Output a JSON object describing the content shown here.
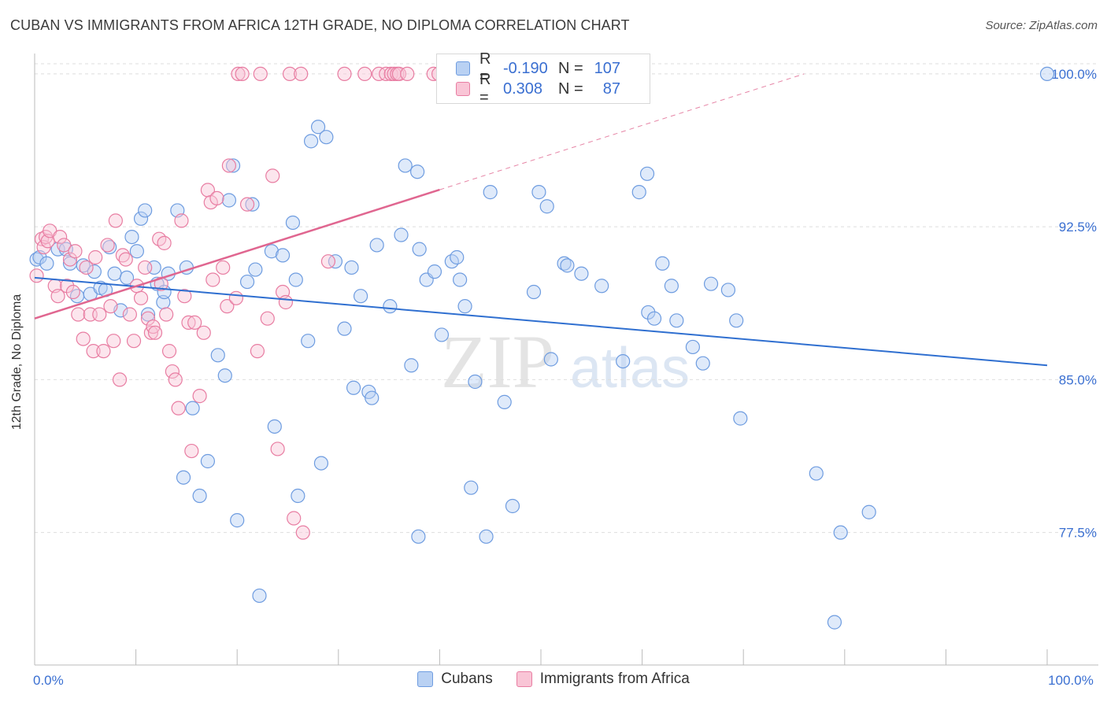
{
  "title": "CUBAN VS IMMIGRANTS FROM AFRICA 12TH GRADE, NO DIPLOMA CORRELATION CHART",
  "source": "Source: ZipAtlas.com",
  "watermark": {
    "zip": "ZIP",
    "atlas": "atlas"
  },
  "legend": {
    "r_label": "R =",
    "n_label": "N =",
    "rows": [
      {
        "r": "-0.190",
        "n": "107",
        "fill": "#b9d1f3",
        "stroke": "#6e9ce0"
      },
      {
        "r": "0.308",
        "n": "87",
        "fill": "#f9c5d6",
        "stroke": "#e87da2"
      }
    ]
  },
  "bottom_legend": [
    "Cubans",
    "Immigrants from Africa"
  ],
  "chart_data": {
    "type": "scatter",
    "xlabel": "",
    "ylabel": "12th Grade, No Diploma",
    "xlim": [
      0,
      100
    ],
    "ylim": [
      71,
      101
    ],
    "x_tick_labels": [
      {
        "value": 0,
        "label": "0.0%"
      },
      {
        "value": 100,
        "label": "100.0%"
      }
    ],
    "x_minor_ticks": [
      0,
      10,
      20,
      30,
      40,
      50,
      60,
      70,
      80,
      90,
      100
    ],
    "y_ticks": [
      {
        "value": 77.5,
        "label": "77.5%"
      },
      {
        "value": 85.0,
        "label": "85.0%"
      },
      {
        "value": 92.5,
        "label": "92.5%"
      },
      {
        "value": 100.0,
        "label": "100.0%"
      }
    ],
    "grid": true,
    "series": [
      {
        "name": "Cubans",
        "color": "#6e9ce0",
        "fill": "#b9d1f3",
        "trend": {
          "x0": 0,
          "y0": 90.0,
          "x1": 100,
          "y1": 85.7,
          "color": "#2f6fd0",
          "dashed_from": null
        },
        "points": [
          [
            0.2,
            90.9
          ],
          [
            0.5,
            91.0
          ],
          [
            1.2,
            90.7
          ],
          [
            2.3,
            91.4
          ],
          [
            3.1,
            91.4
          ],
          [
            3.5,
            90.7
          ],
          [
            4.2,
            89.1
          ],
          [
            4.8,
            90.6
          ],
          [
            5.5,
            89.2
          ],
          [
            5.9,
            90.3
          ],
          [
            6.5,
            89.5
          ],
          [
            7.0,
            89.4
          ],
          [
            7.4,
            91.5
          ],
          [
            7.9,
            90.2
          ],
          [
            8.5,
            88.4
          ],
          [
            9.1,
            90.0
          ],
          [
            9.6,
            92.0
          ],
          [
            10.1,
            91.3
          ],
          [
            10.5,
            92.9
          ],
          [
            10.9,
            93.3
          ],
          [
            11.2,
            88.2
          ],
          [
            11.8,
            90.5
          ],
          [
            12.1,
            89.7
          ],
          [
            12.7,
            88.8
          ],
          [
            12.8,
            89.3
          ],
          [
            13.2,
            90.2
          ],
          [
            14.1,
            93.3
          ],
          [
            14.7,
            80.2
          ],
          [
            15.0,
            90.5
          ],
          [
            15.6,
            83.6
          ],
          [
            16.3,
            79.3
          ],
          [
            17.1,
            81.0
          ],
          [
            18.1,
            86.2
          ],
          [
            18.8,
            85.2
          ],
          [
            19.2,
            93.8
          ],
          [
            19.6,
            95.5
          ],
          [
            20.0,
            78.1
          ],
          [
            21.0,
            89.8
          ],
          [
            21.5,
            93.6
          ],
          [
            21.8,
            90.4
          ],
          [
            22.2,
            74.4
          ],
          [
            23.4,
            91.3
          ],
          [
            23.7,
            82.7
          ],
          [
            24.5,
            91.1
          ],
          [
            25.5,
            92.7
          ],
          [
            25.8,
            89.9
          ],
          [
            26.0,
            79.3
          ],
          [
            27.0,
            86.9
          ],
          [
            27.3,
            96.7
          ],
          [
            28.0,
            97.4
          ],
          [
            28.3,
            80.9
          ],
          [
            28.8,
            96.9
          ],
          [
            29.7,
            90.8
          ],
          [
            30.6,
            87.5
          ],
          [
            31.3,
            90.5
          ],
          [
            31.5,
            84.6
          ],
          [
            32.2,
            89.1
          ],
          [
            33.0,
            84.4
          ],
          [
            33.3,
            84.1
          ],
          [
            33.8,
            91.6
          ],
          [
            35.1,
            88.6
          ],
          [
            36.2,
            92.1
          ],
          [
            36.6,
            95.5
          ],
          [
            37.2,
            85.7
          ],
          [
            37.8,
            95.2
          ],
          [
            37.9,
            77.3
          ],
          [
            38.0,
            91.4
          ],
          [
            38.7,
            89.9
          ],
          [
            39.5,
            90.3
          ],
          [
            40.2,
            87.2
          ],
          [
            41.2,
            90.8
          ],
          [
            41.7,
            91.0
          ],
          [
            42.0,
            89.9
          ],
          [
            42.5,
            88.6
          ],
          [
            43.1,
            79.7
          ],
          [
            43.5,
            84.9
          ],
          [
            44.6,
            77.3
          ],
          [
            45.0,
            94.2
          ],
          [
            46.4,
            83.9
          ],
          [
            47.2,
            78.8
          ],
          [
            49.3,
            89.3
          ],
          [
            49.8,
            94.2
          ],
          [
            50.6,
            93.5
          ],
          [
            51.0,
            86.0
          ],
          [
            52.3,
            90.7
          ],
          [
            52.6,
            90.6
          ],
          [
            54.0,
            90.2
          ],
          [
            56.0,
            89.6
          ],
          [
            58.1,
            85.9
          ],
          [
            59.7,
            94.2
          ],
          [
            60.5,
            95.1
          ],
          [
            60.6,
            88.3
          ],
          [
            61.2,
            88.0
          ],
          [
            62.0,
            90.7
          ],
          [
            62.9,
            89.6
          ],
          [
            63.4,
            87.9
          ],
          [
            65.0,
            86.6
          ],
          [
            66.0,
            85.8
          ],
          [
            66.8,
            89.7
          ],
          [
            68.5,
            89.4
          ],
          [
            69.3,
            87.9
          ],
          [
            69.7,
            83.1
          ],
          [
            77.2,
            80.4
          ],
          [
            79.0,
            73.1
          ],
          [
            79.6,
            77.5
          ],
          [
            82.4,
            78.5
          ],
          [
            100.0,
            100.0
          ]
        ]
      },
      {
        "name": "Immigrants from Africa",
        "color": "#e87da2",
        "fill": "#f9c5d6",
        "trend": {
          "x0": 0,
          "y0": 88.0,
          "x1": 76.0,
          "y1": 100.0,
          "color": "#e06690",
          "dashed_from": 40.0
        },
        "points": [
          [
            0.2,
            90.1
          ],
          [
            0.7,
            91.9
          ],
          [
            0.9,
            91.5
          ],
          [
            1.1,
            92.0
          ],
          [
            1.3,
            91.8
          ],
          [
            1.5,
            92.3
          ],
          [
            2.0,
            89.6
          ],
          [
            2.3,
            89.1
          ],
          [
            2.5,
            92.0
          ],
          [
            2.9,
            91.6
          ],
          [
            3.2,
            89.6
          ],
          [
            3.5,
            90.9
          ],
          [
            3.8,
            89.3
          ],
          [
            4.0,
            91.3
          ],
          [
            4.3,
            88.2
          ],
          [
            4.8,
            87.0
          ],
          [
            5.1,
            90.5
          ],
          [
            5.5,
            88.2
          ],
          [
            5.8,
            86.4
          ],
          [
            6.0,
            91.0
          ],
          [
            6.4,
            88.2
          ],
          [
            6.8,
            86.4
          ],
          [
            7.2,
            91.6
          ],
          [
            7.5,
            88.6
          ],
          [
            7.8,
            86.9
          ],
          [
            8.0,
            92.8
          ],
          [
            8.4,
            85.0
          ],
          [
            8.7,
            91.1
          ],
          [
            9.0,
            90.9
          ],
          [
            9.4,
            88.2
          ],
          [
            9.8,
            86.9
          ],
          [
            10.1,
            89.6
          ],
          [
            10.5,
            89.0
          ],
          [
            10.9,
            90.5
          ],
          [
            11.2,
            88.0
          ],
          [
            11.5,
            87.3
          ],
          [
            11.7,
            87.6
          ],
          [
            11.9,
            87.3
          ],
          [
            12.3,
            91.9
          ],
          [
            12.5,
            89.7
          ],
          [
            12.8,
            91.7
          ],
          [
            13.0,
            88.2
          ],
          [
            13.3,
            86.4
          ],
          [
            13.6,
            85.4
          ],
          [
            13.9,
            85.0
          ],
          [
            14.2,
            83.6
          ],
          [
            14.5,
            92.8
          ],
          [
            14.8,
            89.1
          ],
          [
            15.2,
            87.8
          ],
          [
            15.5,
            81.5
          ],
          [
            15.8,
            87.8
          ],
          [
            16.3,
            84.2
          ],
          [
            16.7,
            87.3
          ],
          [
            17.1,
            94.3
          ],
          [
            17.4,
            93.7
          ],
          [
            17.6,
            89.9
          ],
          [
            18.0,
            93.9
          ],
          [
            18.6,
            90.5
          ],
          [
            19.0,
            88.6
          ],
          [
            19.2,
            95.5
          ],
          [
            19.9,
            89.0
          ],
          [
            20.1,
            100.0
          ],
          [
            20.5,
            100.0
          ],
          [
            21.0,
            93.6
          ],
          [
            22.0,
            86.4
          ],
          [
            22.3,
            100.0
          ],
          [
            23.0,
            88.0
          ],
          [
            23.5,
            95.0
          ],
          [
            24.0,
            81.6
          ],
          [
            24.5,
            89.3
          ],
          [
            24.8,
            88.8
          ],
          [
            25.2,
            100.0
          ],
          [
            25.6,
            78.2
          ],
          [
            26.3,
            100.0
          ],
          [
            26.5,
            77.5
          ],
          [
            29.0,
            90.8
          ],
          [
            30.6,
            100.0
          ],
          [
            32.6,
            100.0
          ],
          [
            34.0,
            100.0
          ],
          [
            34.7,
            100.0
          ],
          [
            35.2,
            100.0
          ],
          [
            35.5,
            100.0
          ],
          [
            35.8,
            100.0
          ],
          [
            36.0,
            100.0
          ],
          [
            36.8,
            100.0
          ],
          [
            39.4,
            100.0
          ],
          [
            39.9,
            100.0
          ]
        ]
      }
    ]
  }
}
